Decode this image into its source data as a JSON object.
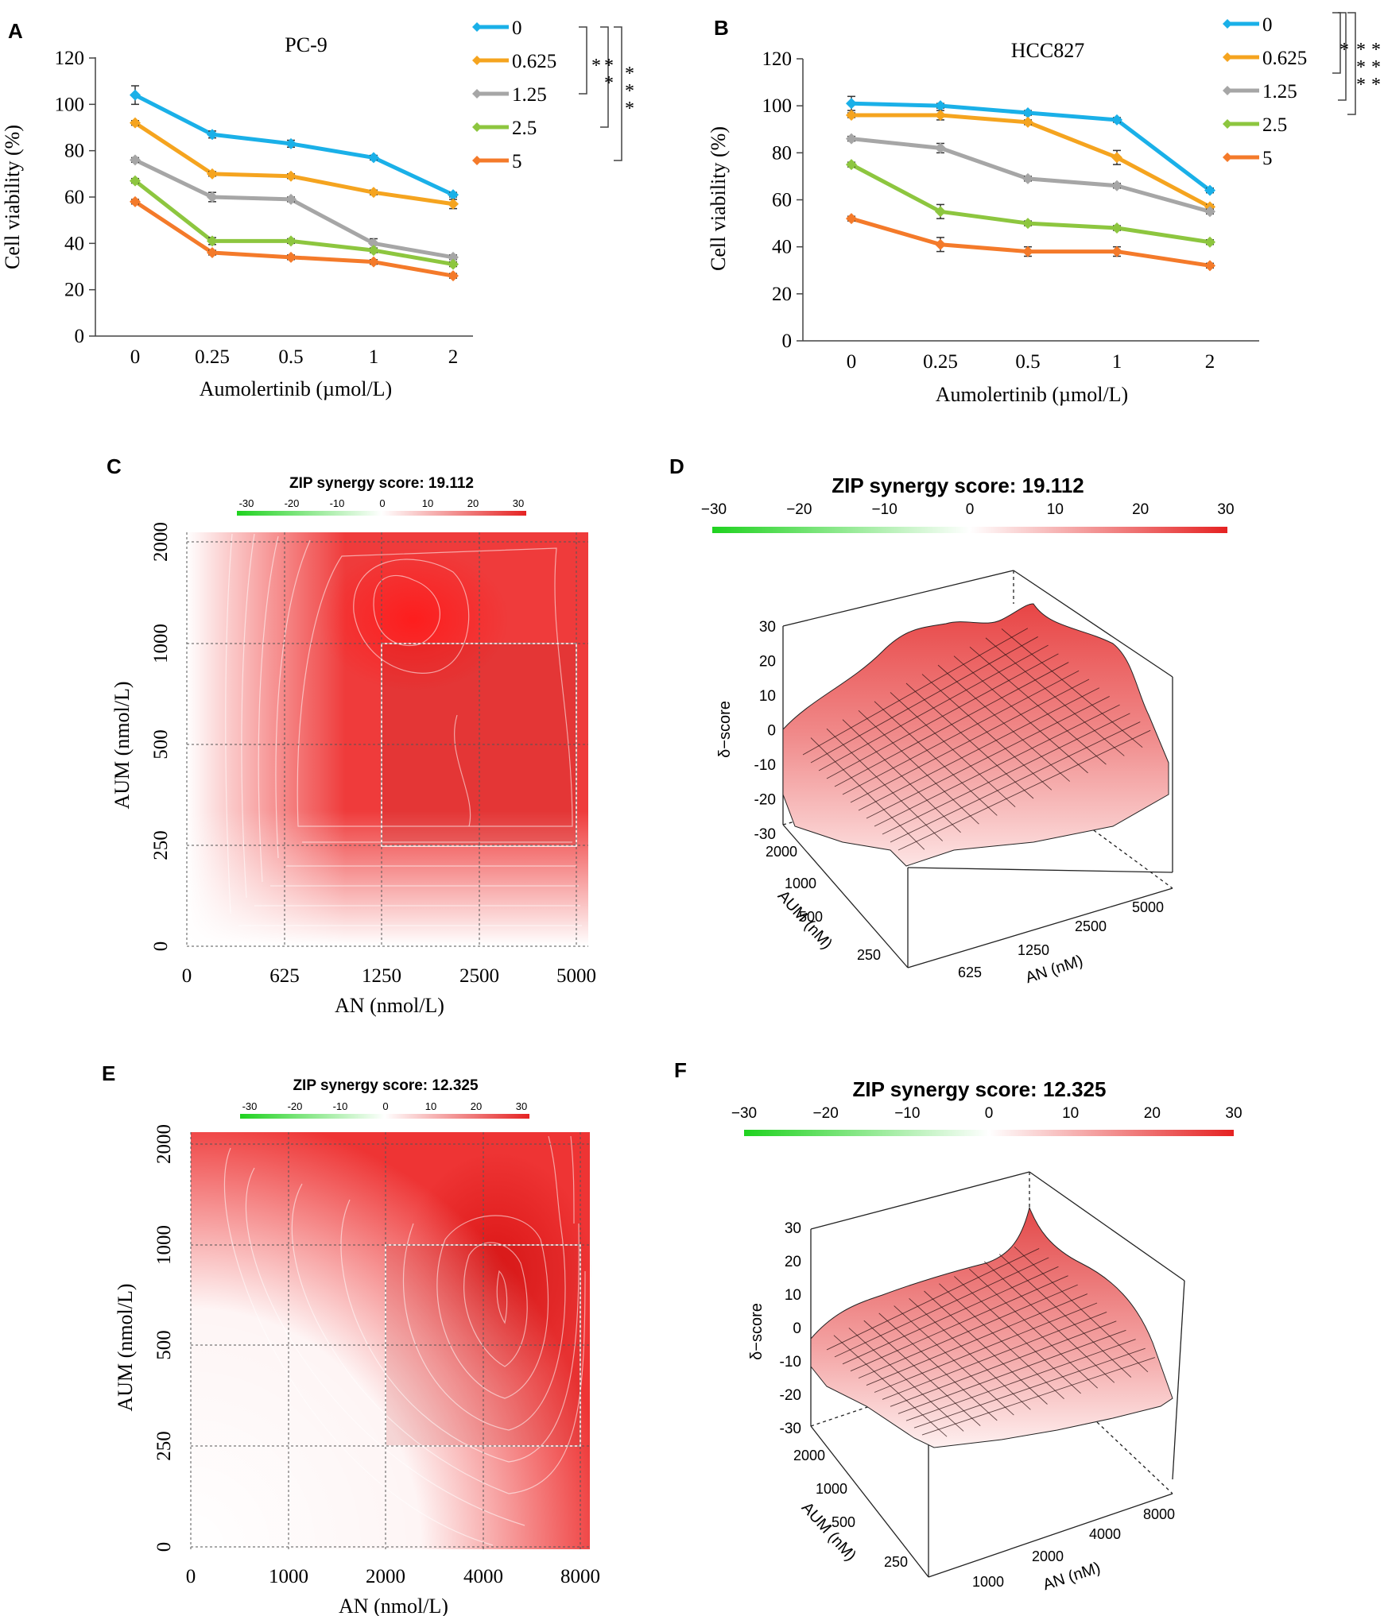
{
  "chart_data": [
    {
      "panel": "A",
      "type": "line",
      "title": "PC-9",
      "xlabel": "Aumolertinib (µmol/L)",
      "ylabel": "Cell viability (%)",
      "categories": [
        "0",
        "0.25",
        "0.5",
        "1",
        "2"
      ],
      "ylim": [
        0,
        120
      ],
      "yticks": [
        "0",
        "20",
        "40",
        "60",
        "80",
        "100",
        "120"
      ],
      "legend_position": "top-right",
      "series": [
        {
          "name": "0",
          "color": "#1ab0e8",
          "values": [
            104,
            87,
            83,
            77,
            61
          ],
          "errors": [
            4,
            1.5,
            1.5,
            1,
            1
          ]
        },
        {
          "name": "0.625",
          "color": "#f5a41f",
          "values": [
            92,
            70,
            69,
            62,
            57
          ],
          "errors": [
            1,
            1,
            1,
            1,
            2
          ]
        },
        {
          "name": "1.25",
          "color": "#a6a6a6",
          "values": [
            76,
            60,
            59,
            40,
            34
          ],
          "errors": [
            1,
            2,
            1,
            2,
            1
          ]
        },
        {
          "name": "2.5",
          "color": "#8dc63f",
          "values": [
            67,
            41,
            41,
            37,
            31
          ],
          "errors": [
            1,
            1.5,
            1,
            1,
            1
          ]
        },
        {
          "name": "5",
          "color": "#f47a2a",
          "values": [
            58,
            36,
            34,
            32,
            26
          ],
          "errors": [
            1,
            1,
            1,
            1,
            1
          ]
        }
      ],
      "significance": [
        "*",
        "*",
        "*",
        "*",
        "*",
        "*"
      ]
    },
    {
      "panel": "B",
      "type": "line",
      "title": "HCC827",
      "xlabel": "Aumolertinib (µmol/L)",
      "ylabel": "Cell viability (%)",
      "categories": [
        "0",
        "0.25",
        "0.5",
        "1",
        "2"
      ],
      "ylim": [
        0,
        120
      ],
      "yticks": [
        "0",
        "20",
        "40",
        "60",
        "80",
        "100",
        "120"
      ],
      "legend_position": "top-right",
      "series": [
        {
          "name": "0",
          "color": "#1ab0e8",
          "values": [
            101,
            100,
            97,
            94,
            64
          ],
          "errors": [
            3,
            1,
            1,
            1,
            1
          ]
        },
        {
          "name": "0.625",
          "color": "#f5a41f",
          "values": [
            96,
            96,
            93,
            78,
            57
          ],
          "errors": [
            1,
            2,
            1,
            3,
            1
          ]
        },
        {
          "name": "1.25",
          "color": "#a6a6a6",
          "values": [
            86,
            82,
            69,
            66,
            55
          ],
          "errors": [
            1,
            2,
            1,
            1,
            1
          ]
        },
        {
          "name": "2.5",
          "color": "#8dc63f",
          "values": [
            75,
            55,
            50,
            48,
            42
          ],
          "errors": [
            1,
            3,
            1,
            1,
            1
          ]
        },
        {
          "name": "5",
          "color": "#f47a2a",
          "values": [
            52,
            41,
            38,
            38,
            32
          ],
          "errors": [
            1,
            3,
            2,
            2,
            1
          ]
        }
      ],
      "significance": [
        "*",
        "*",
        "*",
        "*",
        "*",
        "*",
        "*"
      ]
    },
    {
      "panel": "C",
      "type": "heatmap",
      "title": "ZIP synergy score: 19.112",
      "xlabel": "AN (nmol/L)",
      "ylabel": "AUM (nmol/L)",
      "x_ticks": [
        "0",
        "625",
        "1250",
        "2500",
        "5000"
      ],
      "y_ticks": [
        "0",
        "250",
        "500",
        "1000",
        "2000"
      ],
      "colorbar_ticks": [
        "-30",
        "-20",
        "-10",
        "0",
        "10",
        "20",
        "30"
      ]
    },
    {
      "panel": "D",
      "type": "surface",
      "title": "ZIP synergy score: 19.112",
      "zlabel": "δ−score",
      "xlabel": "AN (nM)",
      "ylabel": "AUM (nM)",
      "x_ticks": [
        "625",
        "1250",
        "2500",
        "5000"
      ],
      "y_ticks": [
        "250",
        "500",
        "1000",
        "2000"
      ],
      "z_ticks": [
        "30",
        "20",
        "10",
        "0",
        "-10",
        "-20",
        "-30"
      ],
      "colorbar_ticks": [
        "−30",
        "−20",
        "−10",
        "0",
        "10",
        "20",
        "30"
      ]
    },
    {
      "panel": "E",
      "type": "heatmap",
      "title": "ZIP synergy score: 12.325",
      "xlabel": "AN (nmol/L)",
      "ylabel": "AUM (nmol/L)",
      "x_ticks": [
        "0",
        "1000",
        "2000",
        "4000",
        "8000"
      ],
      "y_ticks": [
        "0",
        "250",
        "500",
        "1000",
        "2000"
      ],
      "colorbar_ticks": [
        "-30",
        "-20",
        "-10",
        "0",
        "10",
        "20",
        "30"
      ]
    },
    {
      "panel": "F",
      "type": "surface",
      "title": "ZIP synergy score: 12.325",
      "zlabel": "δ−score",
      "xlabel": "AN (nM)",
      "ylabel": "AUM (nM)",
      "x_ticks": [
        "1000",
        "2000",
        "4000",
        "8000"
      ],
      "y_ticks": [
        "250",
        "500",
        "1000",
        "2000"
      ],
      "z_ticks": [
        "30",
        "20",
        "10",
        "0",
        "-10",
        "-20",
        "-30"
      ],
      "colorbar_ticks": [
        "−30",
        "−20",
        "−10",
        "0",
        "10",
        "20",
        "30"
      ]
    }
  ],
  "colors": {
    "synergy_high": "#e52222",
    "synergy_zero": "#ffffff",
    "antagonism": "#1fd21f"
  }
}
